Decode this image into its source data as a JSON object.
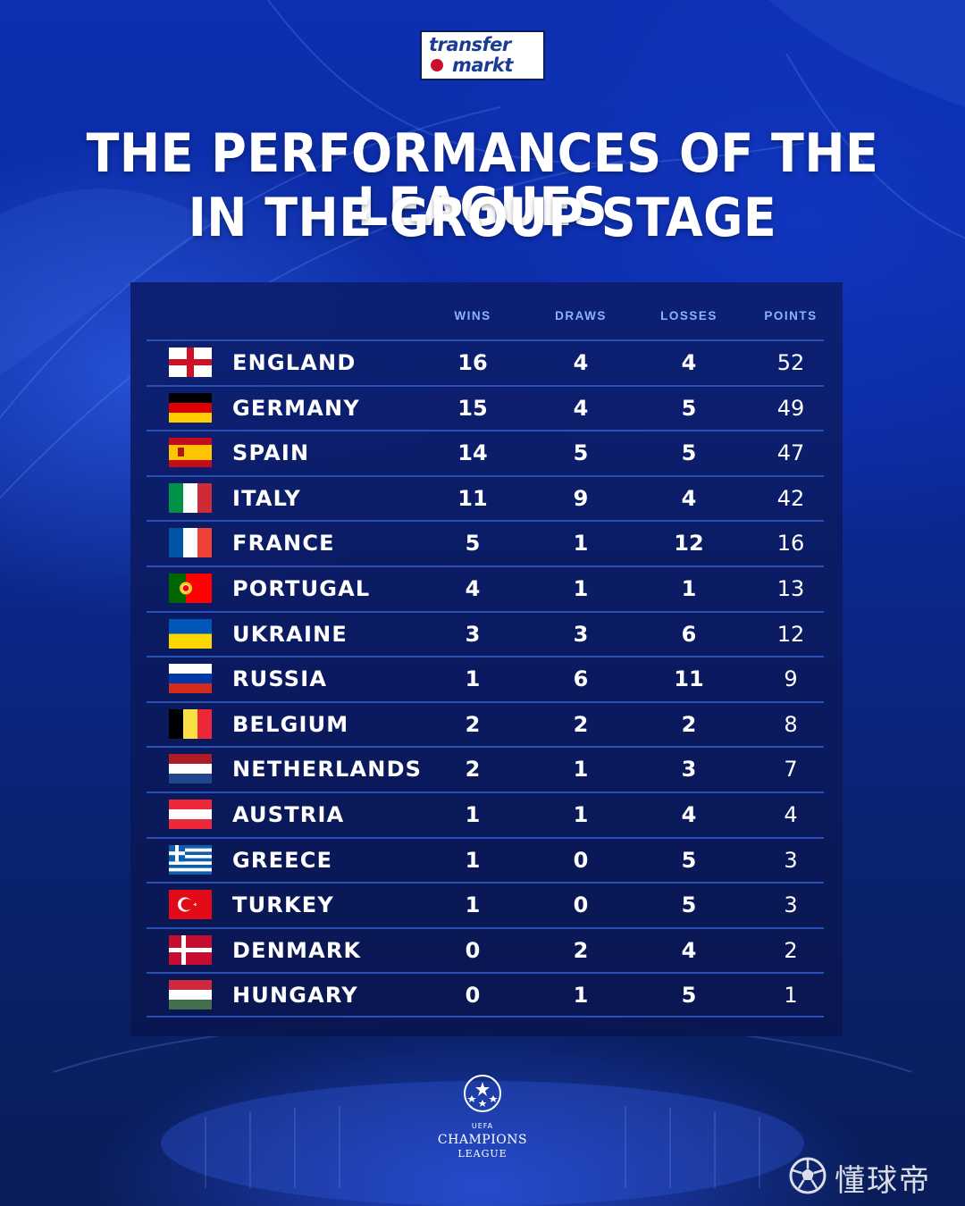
{
  "brand": {
    "logo_line1": "transfer",
    "logo_line2": "markt"
  },
  "title": {
    "line1": "THE PERFORMANCES OF THE LEAGUES",
    "line2": "IN THE GROUP STAGE"
  },
  "table": {
    "headers": {
      "wins": "WINS",
      "draws": "DRAWS",
      "losses": "LOSSES",
      "points": "POINTS"
    },
    "rows": [
      {
        "country": "ENGLAND",
        "flag": "england-flag-icon",
        "wins": "16",
        "draws": "4",
        "losses": "4",
        "points": "52"
      },
      {
        "country": "GERMANY",
        "flag": "germany-flag-icon",
        "wins": "15",
        "draws": "4",
        "losses": "5",
        "points": "49"
      },
      {
        "country": "SPAIN",
        "flag": "spain-flag-icon",
        "wins": "14",
        "draws": "5",
        "losses": "5",
        "points": "47"
      },
      {
        "country": "ITALY",
        "flag": "italy-flag-icon",
        "wins": "11",
        "draws": "9",
        "losses": "4",
        "points": "42"
      },
      {
        "country": "FRANCE",
        "flag": "france-flag-icon",
        "wins": "5",
        "draws": "1",
        "losses": "12",
        "points": "16"
      },
      {
        "country": "PORTUGAL",
        "flag": "portugal-flag-icon",
        "wins": "4",
        "draws": "1",
        "losses": "1",
        "points": "13"
      },
      {
        "country": "UKRAINE",
        "flag": "ukraine-flag-icon",
        "wins": "3",
        "draws": "3",
        "losses": "6",
        "points": "12"
      },
      {
        "country": "RUSSIA",
        "flag": "russia-flag-icon",
        "wins": "1",
        "draws": "6",
        "losses": "11",
        "points": "9"
      },
      {
        "country": "BELGIUM",
        "flag": "belgium-flag-icon",
        "wins": "2",
        "draws": "2",
        "losses": "2",
        "points": "8"
      },
      {
        "country": "NETHERLANDS",
        "flag": "netherlands-flag-icon",
        "wins": "2",
        "draws": "1",
        "losses": "3",
        "points": "7"
      },
      {
        "country": "AUSTRIA",
        "flag": "austria-flag-icon",
        "wins": "1",
        "draws": "1",
        "losses": "4",
        "points": "4"
      },
      {
        "country": "GREECE",
        "flag": "greece-flag-icon",
        "wins": "1",
        "draws": "0",
        "losses": "5",
        "points": "3"
      },
      {
        "country": "TURKEY",
        "flag": "turkey-flag-icon",
        "wins": "1",
        "draws": "0",
        "losses": "5",
        "points": "3"
      },
      {
        "country": "DENMARK",
        "flag": "denmark-flag-icon",
        "wins": "0",
        "draws": "2",
        "losses": "4",
        "points": "2"
      },
      {
        "country": "HUNGARY",
        "flag": "hungary-flag-icon",
        "wins": "0",
        "draws": "1",
        "losses": "5",
        "points": "1"
      }
    ]
  },
  "competition_logo": {
    "line1": "UEFA",
    "line2": "CHAMPIONS",
    "line3": "LEAGUE",
    "icon": "starball-icon"
  },
  "watermark": {
    "text": "懂球帝",
    "icon": "soccer-ball-icon"
  },
  "colors": {
    "background": "#0b2a9c",
    "panel": "#0c1e6e",
    "header_text": "#8ab4ff",
    "row_divider": "#2a4fb5",
    "text": "#ffffff"
  }
}
